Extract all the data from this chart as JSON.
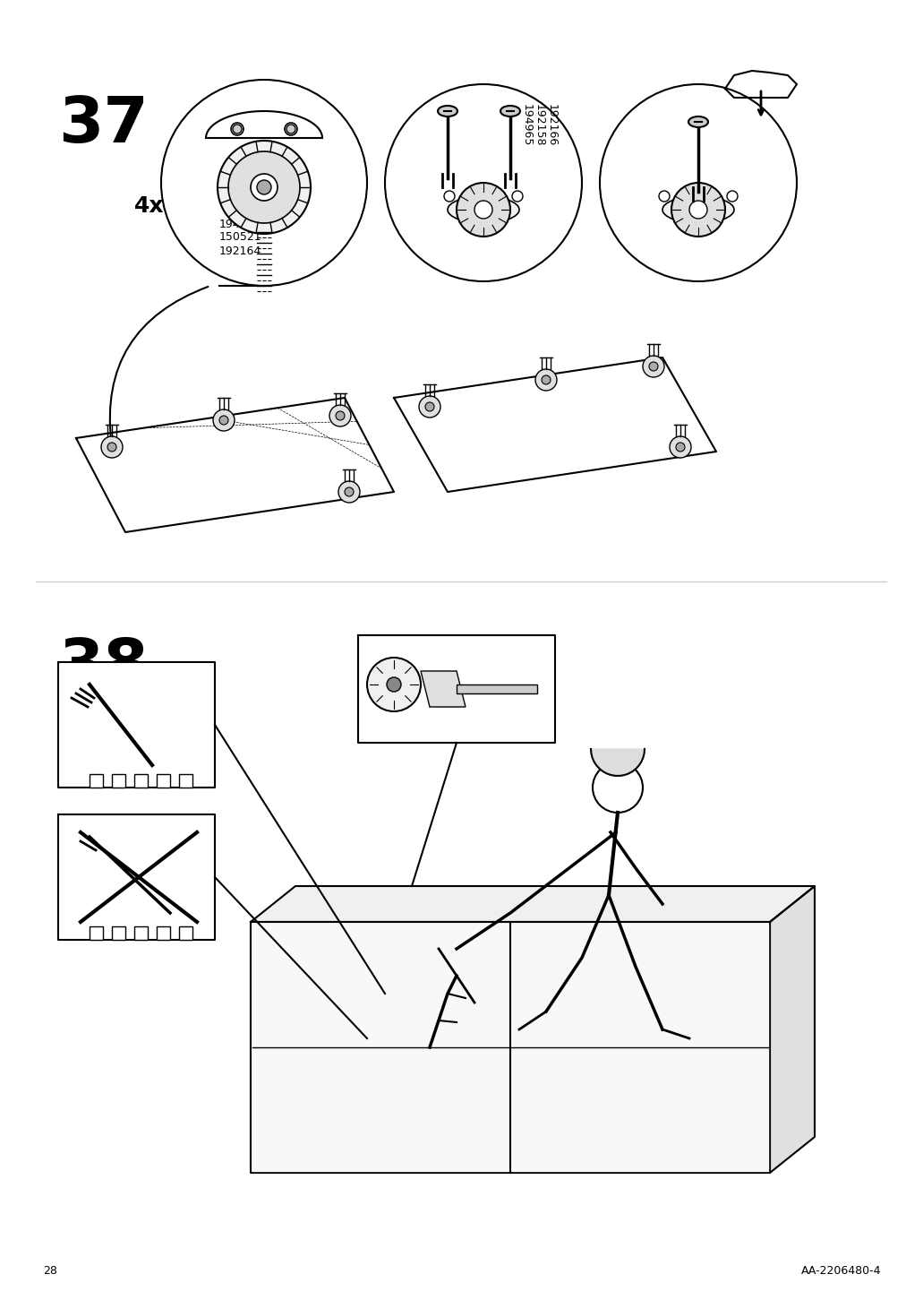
{
  "page_number": "28",
  "doc_id": "AA-2206480-4",
  "step_numbers": [
    "37",
    "38"
  ],
  "background_color": "#ffffff",
  "line_color": "#000000",
  "step37_labels": [
    "4x",
    "194963",
    "150521",
    "192164",
    "194965",
    "192158",
    "192166"
  ],
  "title_fontsize": 52,
  "label_fontsize": 11,
  "footer_fontsize": 9
}
